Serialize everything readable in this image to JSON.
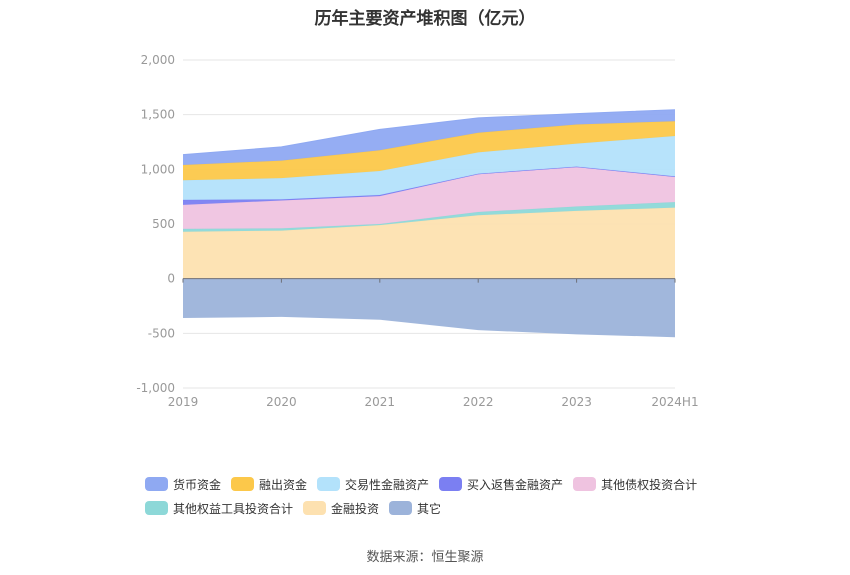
{
  "title": "历年主要资产堆积图（亿元）",
  "source": "数据来源：恒生聚源",
  "chart_data": {
    "type": "area",
    "stacked": true,
    "categories": [
      "2019",
      "2020",
      "2021",
      "2022",
      "2023",
      "2024H1"
    ],
    "ylim": [
      -1000,
      2000
    ],
    "yticks": [
      2000,
      1500,
      1000,
      500,
      0,
      -500,
      -1000
    ],
    "ytick_labels": [
      "2,000",
      "1,500",
      "1,000",
      "500",
      "0",
      "-500",
      "-1,000"
    ],
    "grid": true,
    "legend_position": "bottom",
    "series": [
      {
        "name": "货币资金",
        "color": "#8fa9f2",
        "values": [
          95,
          125,
          190,
          135,
          100,
          105
        ]
      },
      {
        "name": "融出资金",
        "color": "#fcc84a",
        "values": [
          140,
          160,
          190,
          180,
          175,
          135
        ]
      },
      {
        "name": "交易性金融资产",
        "color": "#b3e2fb",
        "values": [
          180,
          195,
          220,
          195,
          210,
          370
        ]
      },
      {
        "name": "买入返售金融资产",
        "color": "#7b7ff2",
        "values": [
          45,
          10,
          10,
          5,
          5,
          5
        ]
      },
      {
        "name": "其他债权投资合计",
        "color": "#efc3e0",
        "values": [
          220,
          255,
          255,
          345,
          360,
          230
        ]
      },
      {
        "name": "其他权益工具投资合计",
        "color": "#8dd8d8",
        "values": [
          25,
          20,
          10,
          30,
          40,
          50
        ]
      },
      {
        "name": "金融投资",
        "color": "#fde1b0",
        "values": [
          430,
          440,
          490,
          580,
          620,
          650
        ]
      },
      {
        "name": "其它",
        "color": "#9cb3da",
        "values": [
          -360,
          -350,
          -375,
          -470,
          -510,
          -535
        ]
      }
    ]
  }
}
